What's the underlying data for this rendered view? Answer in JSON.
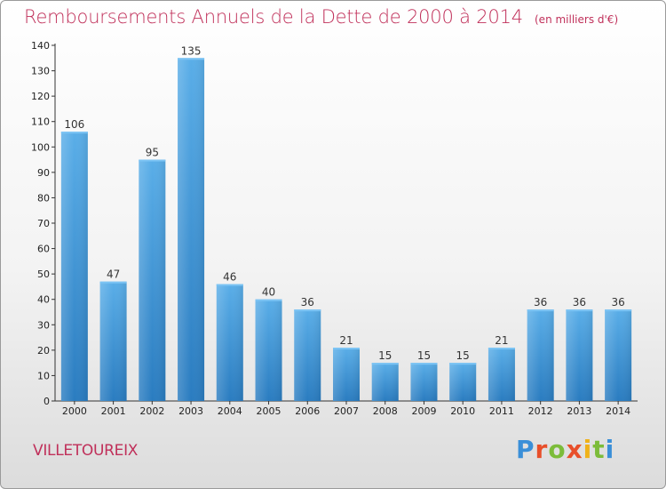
{
  "header": {
    "title": "Remboursements Annuels de la Dette de 2000 à 2014",
    "subtitle": "(en milliers d'€)"
  },
  "footer": {
    "commune": "VILLETOUREIX",
    "brand": [
      "P",
      "r",
      "o",
      "x",
      "i",
      "t",
      "i"
    ]
  },
  "colors": {
    "title": "#c0305a",
    "bar_top": "#5aaee8",
    "bar_bottom": "#2a7cc0"
  },
  "chart_data": {
    "type": "bar",
    "categories": [
      "2000",
      "2001",
      "2002",
      "2003",
      "2004",
      "2005",
      "2006",
      "2007",
      "2008",
      "2009",
      "2010",
      "2011",
      "2012",
      "2013",
      "2014"
    ],
    "values": [
      106,
      47,
      95,
      135,
      46,
      40,
      36,
      21,
      15,
      15,
      15,
      21,
      36,
      36,
      36
    ],
    "title": "Remboursements Annuels de la Dette de 2000 à 2014",
    "xlabel": "",
    "ylabel": "",
    "ylim": [
      0,
      140
    ],
    "yticks": [
      0,
      10,
      20,
      30,
      40,
      50,
      60,
      70,
      80,
      90,
      100,
      110,
      120,
      130,
      140
    ],
    "grid": false,
    "data_labels": true
  }
}
